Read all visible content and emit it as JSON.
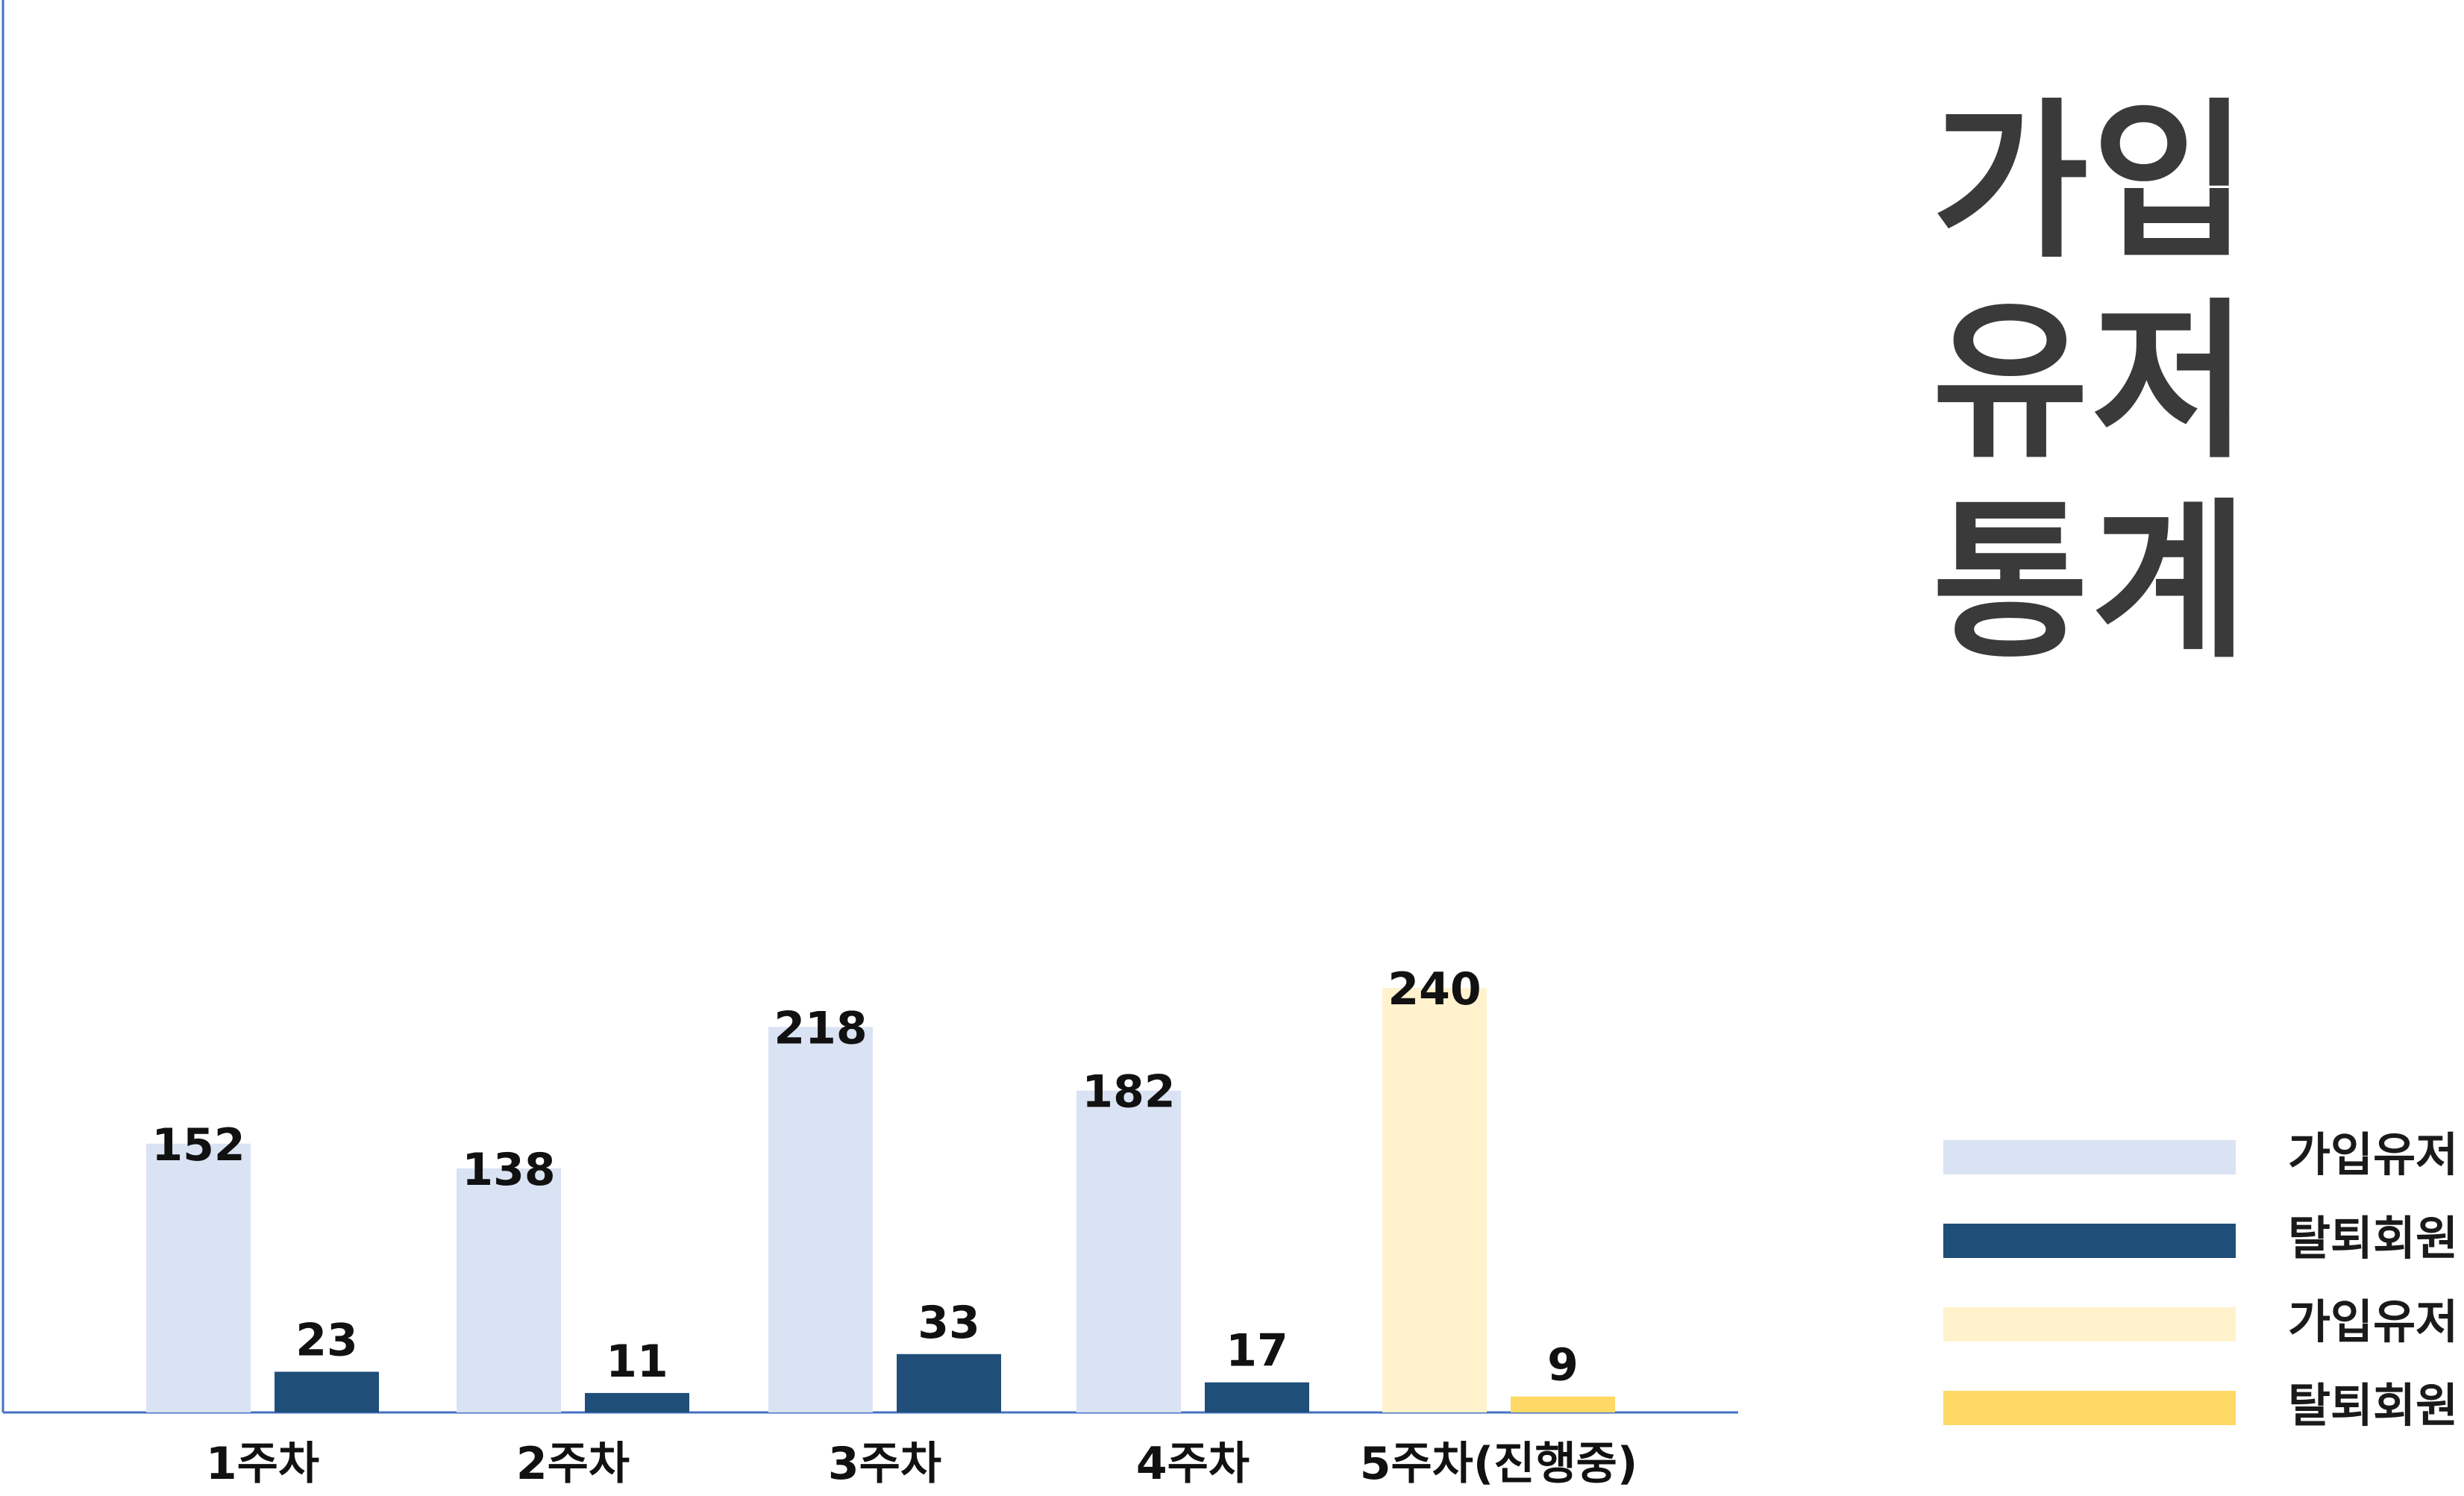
{
  "title_lines": [
    "가입",
    "유저",
    "통계"
  ],
  "legend": [
    {
      "label": "가입유저",
      "color": "#dae3f3"
    },
    {
      "label": "탈퇴회원",
      "color": "#1f4e79"
    },
    {
      "label": "가입유저",
      "color": "#fff2cc"
    },
    {
      "label": "탈퇴회원",
      "color": "#ffd966"
    }
  ],
  "chart_data": {
    "type": "bar",
    "categories": [
      "1주차",
      "2주차",
      "3주차",
      "4주차",
      "5주차(진행중)"
    ],
    "series": [
      {
        "name": "가입유저",
        "values": [
          152,
          138,
          218,
          182,
          240
        ]
      },
      {
        "name": "탈퇴회원",
        "values": [
          23,
          11,
          33,
          17,
          9
        ]
      }
    ],
    "colors": {
      "joined": "#dae3f3",
      "left": "#1f4e79",
      "joined_inprogress": "#fff2cc",
      "left_inprogress": "#ffd966",
      "axis": "#4472c4"
    },
    "legend_position": "right",
    "grid": false
  }
}
